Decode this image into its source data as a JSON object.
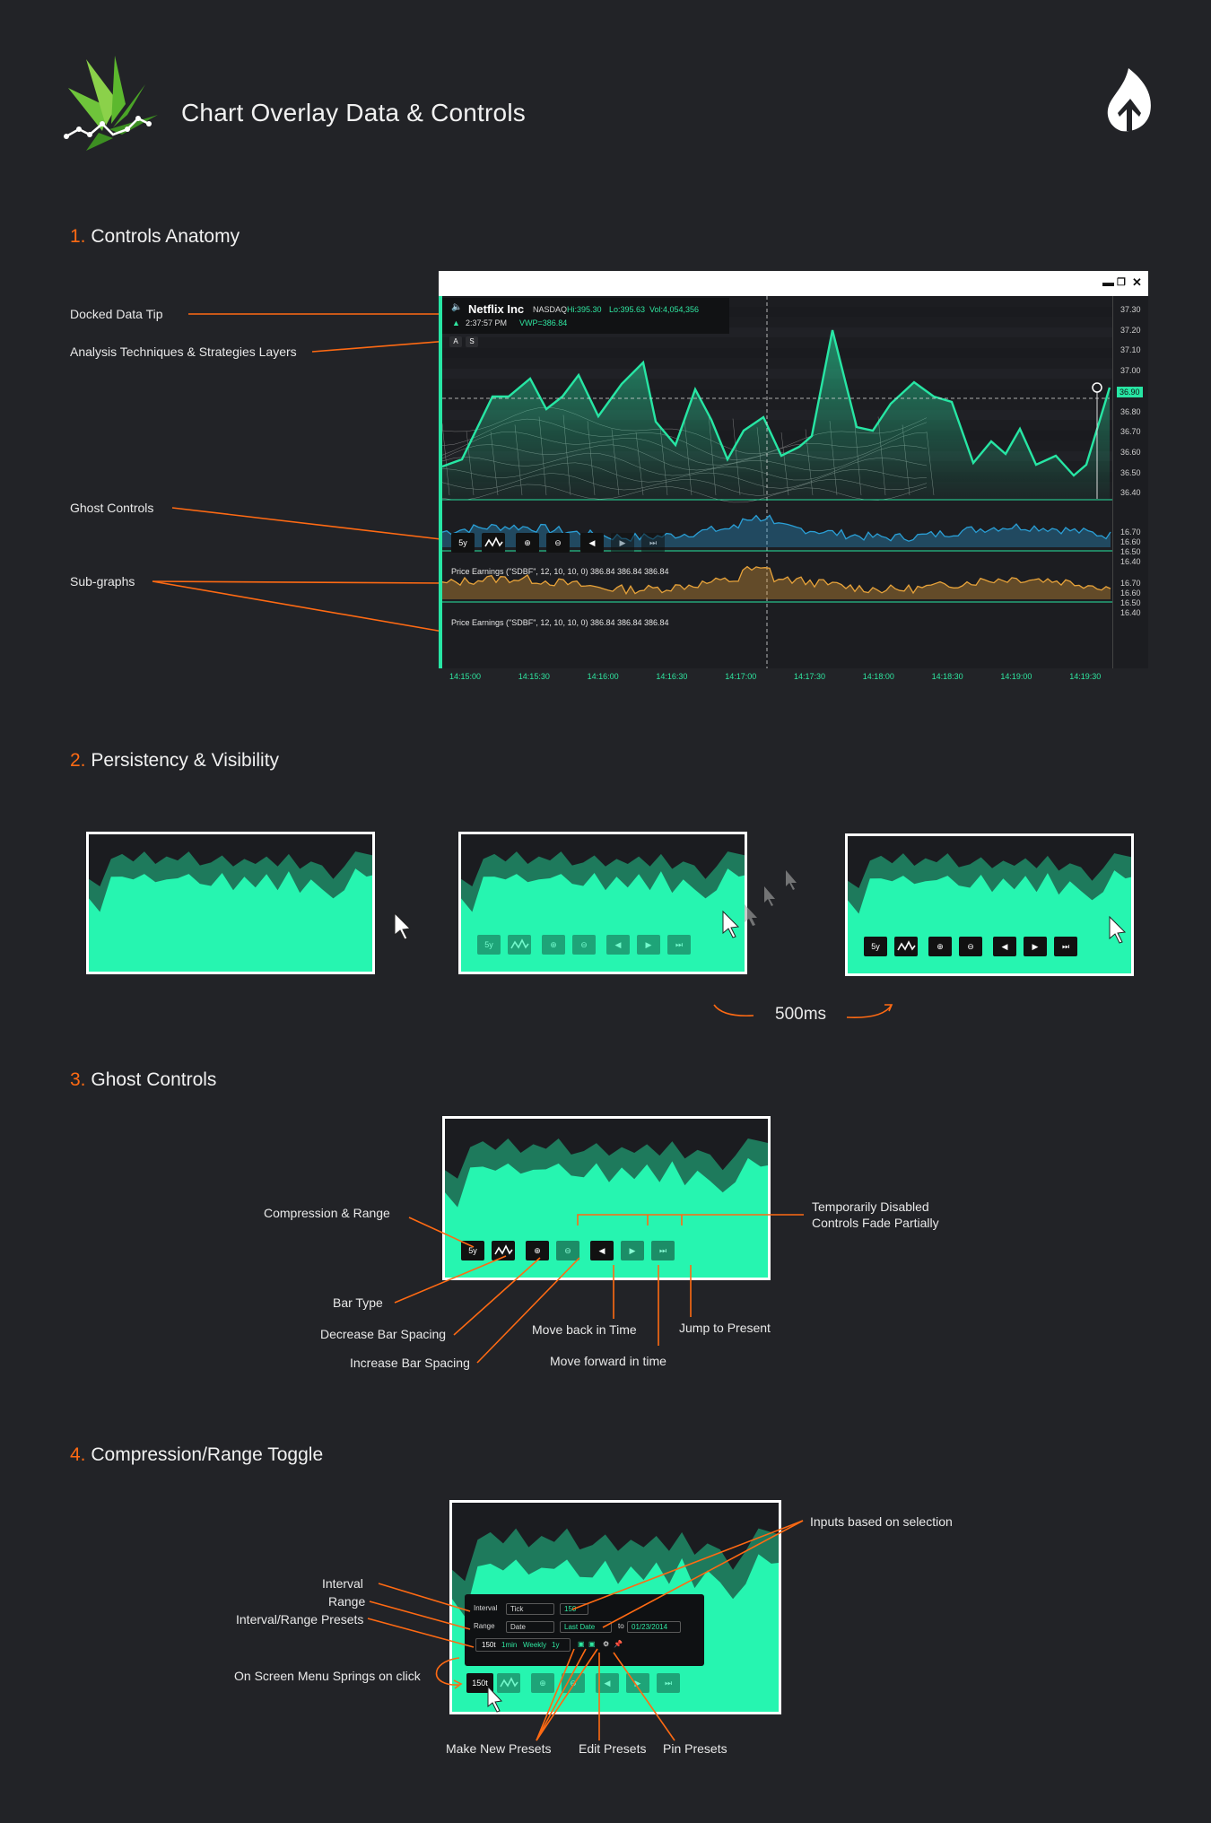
{
  "header": {
    "title": "Chart Overlay Data & Controls",
    "logo": "hummingbird-logo",
    "brand_icon": "flame-up-arrow-icon"
  },
  "sections": [
    {
      "num": "1.",
      "title": "Controls Anatomy"
    },
    {
      "num": "2.",
      "title": "Persistency & Visibility"
    },
    {
      "num": "3.",
      "title": "Ghost Controls"
    },
    {
      "num": "4.",
      "title": "Compression/Range Toggle"
    }
  ],
  "anatomy": {
    "labels": [
      "Docked Data Tip",
      "Analysis Techniques & Strategies Layers",
      "Ghost Controls",
      "Sub-graphs"
    ],
    "tip": {
      "name": "Netflix Inc",
      "exchange": "NASDAQ",
      "hi": "Hi:395.30",
      "lo": "Lo:395.63",
      "vol": "Vol:4,054,356",
      "time": "2:37:57 PM",
      "vwp": "VWP=386.84",
      "layers": [
        "A",
        "S"
      ]
    },
    "y_ticks": [
      "37.30",
      "37.20",
      "37.10",
      "37.00",
      "36.90",
      "36.80",
      "36.70",
      "36.60",
      "36.50",
      "36.40"
    ],
    "current": "36.90",
    "sub_ticks": [
      "16.70",
      "16.60",
      "16.50",
      "16.40"
    ],
    "sub_label": "Price Earnings (\"SDBF\", 12, 10, 10, 0)   386.84  386.84  386.84",
    "x_ticks": [
      "14:15:00",
      "14:15:30",
      "14:16:00",
      "14:16:30",
      "14:17:00",
      "14:17:30",
      "14:18:00",
      "14:18:30",
      "14:19:00",
      "14:19:30"
    ],
    "controls": {
      "range": "5y"
    }
  },
  "persistency": {
    "delay": "500ms"
  },
  "ghost": {
    "labels": {
      "compression": "Compression & Range",
      "bartype": "Bar Type",
      "decrease": "Decrease Bar Spacing",
      "increase": "Increase Bar Spacing",
      "back": "Move back in Time",
      "forward": "Move forward in time",
      "present": "Jump to Present",
      "disabled1": "Temporarily Disabled",
      "disabled2": "Controls Fade Partially"
    },
    "range": "5y"
  },
  "toggle": {
    "labels": {
      "interval": "Interval",
      "range": "Range",
      "presets": "Interval/Range Presets",
      "springs": "On Screen Menu Springs on click",
      "inputs": "Inputs based on selection",
      "make": "Make New Presets",
      "edit": "Edit Presets",
      "pin": "Pin Presets"
    },
    "menu": {
      "interval_lbl": "Interval",
      "interval_val": "Tick",
      "interval_input": "150",
      "range_lbl": "Range",
      "range_val": "Date",
      "range_from": "Last Date",
      "to": "to",
      "range_to": "01/23/2014",
      "presets": [
        "150t",
        "1min",
        "Weekly",
        "1y"
      ]
    },
    "button": "150t"
  },
  "colors": {
    "accent": "#27e6a4",
    "orange": "#ff6a13",
    "bg": "#222327",
    "blue": "#2a9fd6",
    "amber": "#e8a33a"
  }
}
